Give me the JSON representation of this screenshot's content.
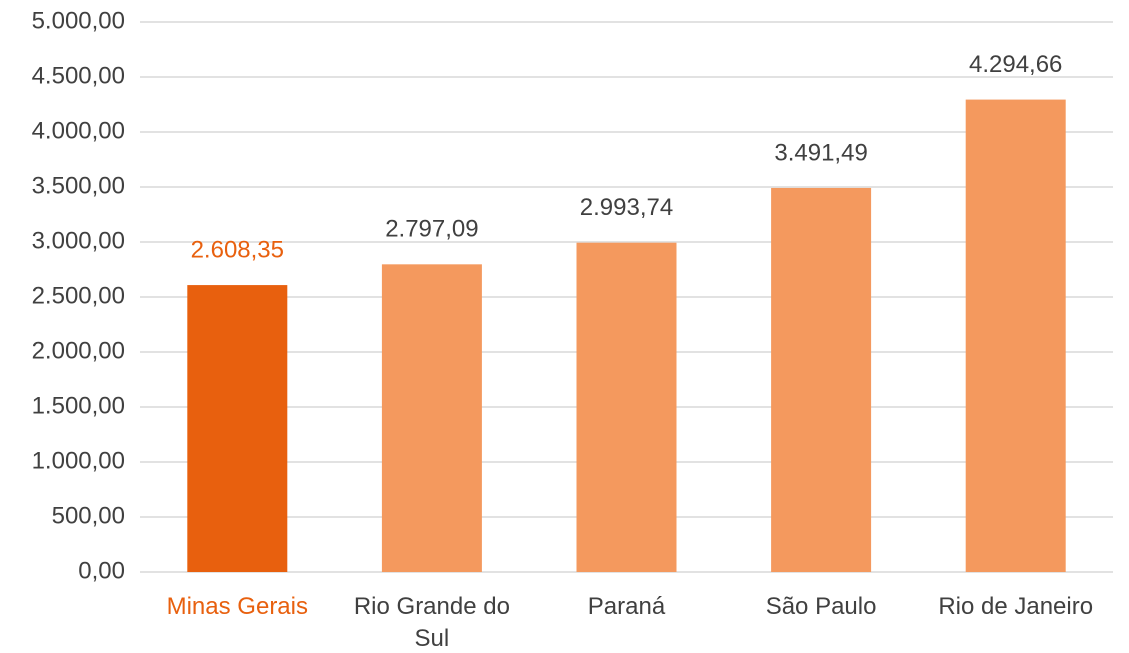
{
  "chart_data": {
    "type": "bar",
    "categories": [
      "Minas Gerais",
      "Rio Grande do Sul",
      "Paraná",
      "São Paulo",
      "Rio de Janeiro"
    ],
    "values": [
      2608.35,
      2797.09,
      2993.74,
      3491.49,
      4294.66
    ],
    "value_labels": [
      "2.608,35",
      "2.797,09",
      "2.993,74",
      "3.491,49",
      "4.294,66"
    ],
    "colors": [
      "#e8600e",
      "#f4995e",
      "#f4995e",
      "#f4995e",
      "#f4995e"
    ],
    "label_colors": [
      "#e8600e",
      "#404040",
      "#404040",
      "#404040",
      "#404040"
    ],
    "ylim": [
      0,
      5000
    ],
    "yticks": [
      {
        "value": 0,
        "label": "0,00"
      },
      {
        "value": 500,
        "label": "500,00"
      },
      {
        "value": 1000,
        "label": "1.000,00"
      },
      {
        "value": 1500,
        "label": "1.500,00"
      },
      {
        "value": 2000,
        "label": "2.000,00"
      },
      {
        "value": 2500,
        "label": "2.500,00"
      },
      {
        "value": 3000,
        "label": "3.000,00"
      },
      {
        "value": 3500,
        "label": "3.500,00"
      },
      {
        "value": 4000,
        "label": "4.000,00"
      },
      {
        "value": 4500,
        "label": "4.500,00"
      },
      {
        "value": 5000,
        "label": "5.000,00"
      }
    ],
    "grid": true
  }
}
